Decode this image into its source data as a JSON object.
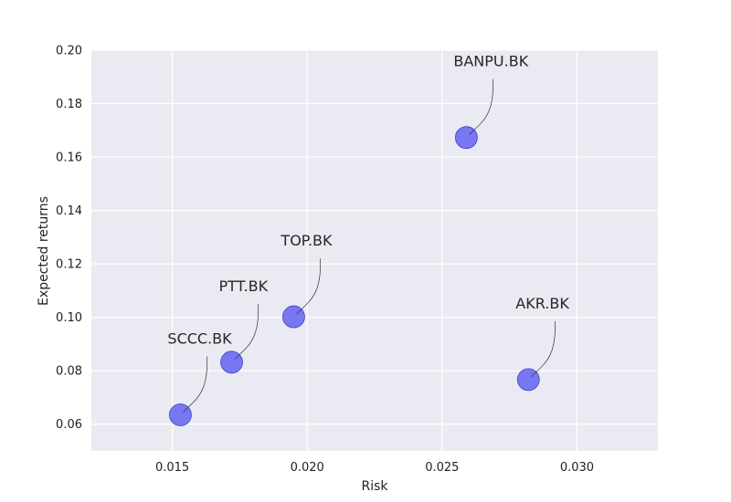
{
  "chart_data": {
    "type": "scatter",
    "title": "",
    "xlabel": "Risk",
    "ylabel": "Expected returns",
    "xlim": [
      0.012,
      0.033
    ],
    "ylim": [
      0.05,
      0.2
    ],
    "xticks": [
      0.015,
      0.02,
      0.025,
      0.03
    ],
    "xtick_labels": [
      "0.015",
      "0.020",
      "0.025",
      "0.030"
    ],
    "yticks": [
      0.06,
      0.08,
      0.1,
      0.12,
      0.14,
      0.16,
      0.18,
      0.2
    ],
    "ytick_labels": [
      "0.06",
      "0.08",
      "0.10",
      "0.12",
      "0.14",
      "0.16",
      "0.18",
      "0.20"
    ],
    "grid": true,
    "point_color": "#5a5af0",
    "background_color": "#eaeaf2",
    "points": [
      {
        "label": "SCCC.BK",
        "x": 0.0153,
        "y": 0.0635
      },
      {
        "label": "PTT.BK",
        "x": 0.0172,
        "y": 0.0832
      },
      {
        "label": "TOP.BK",
        "x": 0.0195,
        "y": 0.1002
      },
      {
        "label": "BANPU.BK",
        "x": 0.0259,
        "y": 0.1673
      },
      {
        "label": "AKR.BK",
        "x": 0.0282,
        "y": 0.0767
      }
    ]
  }
}
